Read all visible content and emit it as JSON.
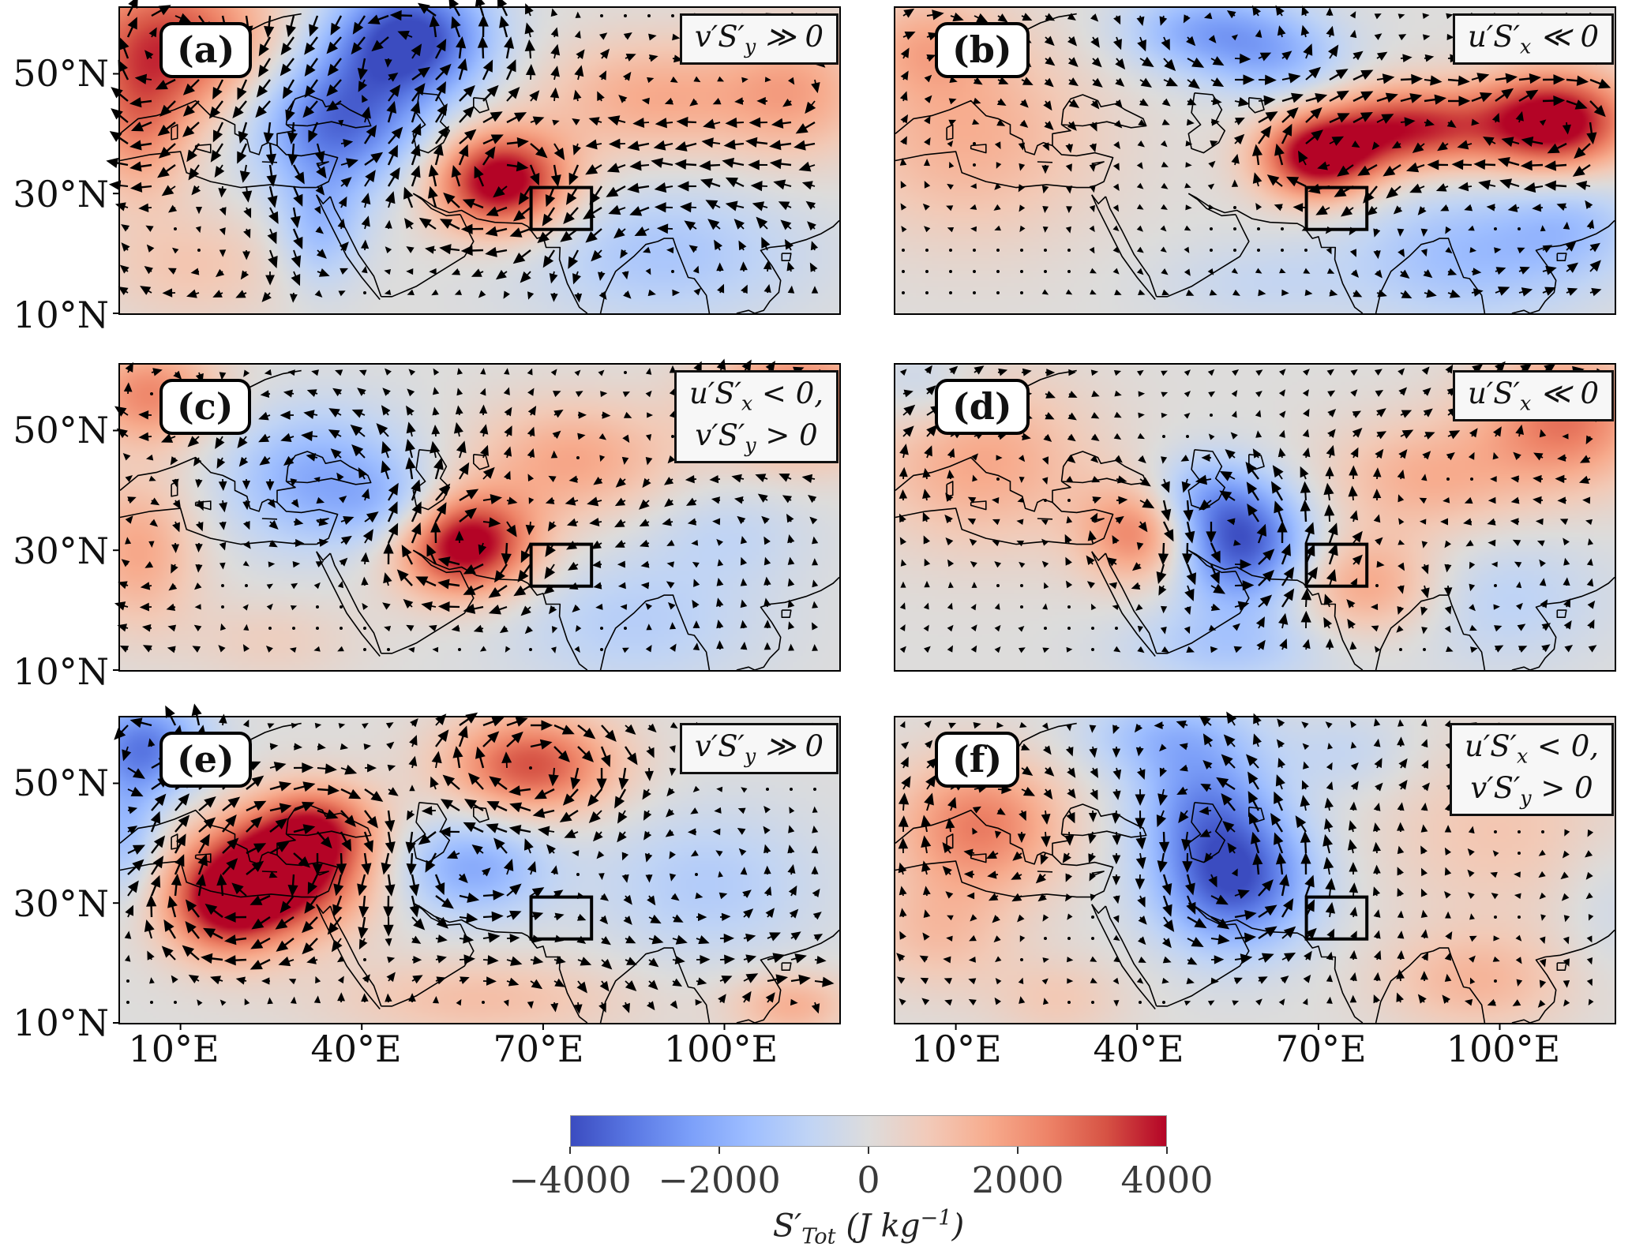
{
  "chart_data": {
    "type": "heatmap",
    "subtype": "6-panel filled geographic anomaly maps with quiver (wind-vector) overlay and highlighted study region box",
    "colormap": "coolwarm",
    "vmin": -4000,
    "vmax": 4000,
    "colorbar_orientation": "horizontal",
    "colorbar_ticks": [
      "−4000",
      "−2000",
      "0",
      "2000",
      "4000"
    ],
    "colorbar_label": "S′_Tot_ (J kg^−1^)",
    "x_ticks": [
      "10°E",
      "40°E",
      "70°E",
      "100°E"
    ],
    "x_tick_lons": [
      10,
      40,
      70,
      100
    ],
    "y_ticks": [
      "50°N",
      "30°N",
      "10°N"
    ],
    "y_tick_lats": [
      50,
      30,
      10
    ],
    "lon_range": [
      0,
      119
    ],
    "lat_range": [
      10,
      61
    ],
    "box_region_lon": [
      68,
      78
    ],
    "box_region_lat": [
      24,
      31
    ],
    "blob_format": "[lon_deg_E, lat_deg_N, sigma_lon_deg, sigma_lat_deg, value_J_per_kg] gaussian anomaly centers estimated from the map shading",
    "panels": [
      {
        "id": "a",
        "label": "(a)",
        "annotation": [
          "v′S′_y_ ≫ 0"
        ],
        "arrow_scale": 1.45,
        "base_flow": [
          -0.08,
          0
        ],
        "blobs": [
          [
            8,
            55,
            12,
            9,
            3400
          ],
          [
            3,
            40,
            6,
            8,
            1800
          ],
          [
            48,
            56,
            9,
            7,
            -4200
          ],
          [
            36,
            42,
            10,
            8,
            -3400
          ],
          [
            33,
            24,
            5,
            7,
            -1600
          ],
          [
            63,
            32,
            8,
            6,
            4600
          ],
          [
            88,
            46,
            13,
            7,
            1600
          ],
          [
            112,
            47,
            9,
            8,
            1600
          ],
          [
            90,
            20,
            16,
            8,
            -1300
          ],
          [
            12,
            18,
            12,
            7,
            900
          ]
        ]
      },
      {
        "id": "b",
        "label": "(b)",
        "annotation": [
          "u′S′_x_ ≪ 0"
        ],
        "arrow_scale": 0.9,
        "base_flow": [
          0.12,
          0
        ],
        "blobs": [
          [
            12,
            40,
            15,
            12,
            1500
          ],
          [
            5,
            55,
            8,
            6,
            1200
          ],
          [
            52,
            57,
            10,
            5,
            -2200
          ],
          [
            64,
            52,
            8,
            5,
            -1400
          ],
          [
            70,
            36,
            7,
            5,
            4300
          ],
          [
            85,
            41,
            10,
            5,
            3600
          ],
          [
            109,
            42,
            9,
            6,
            4600
          ],
          [
            95,
            20,
            14,
            8,
            -1600
          ],
          [
            112,
            25,
            8,
            6,
            -1100
          ],
          [
            60,
            15,
            12,
            5,
            -600
          ]
        ]
      },
      {
        "id": "c",
        "label": "(c)",
        "annotation": [
          "u′S′_x_ < 0,",
          "v′S′_y_ > 0"
        ],
        "arrow_scale": 1.0,
        "base_flow": [
          -0.05,
          0.06
        ],
        "blobs": [
          [
            5,
            56,
            8,
            6,
            2300
          ],
          [
            3,
            30,
            7,
            9,
            1700
          ],
          [
            33,
            42,
            11,
            8,
            -2100
          ],
          [
            46,
            37,
            7,
            5,
            -1100
          ],
          [
            57,
            31,
            8,
            6,
            4600
          ],
          [
            75,
            45,
            12,
            7,
            1700
          ],
          [
            112,
            55,
            10,
            7,
            2700
          ],
          [
            85,
            18,
            15,
            8,
            -1000
          ],
          [
            100,
            33,
            10,
            6,
            -700
          ],
          [
            25,
            15,
            10,
            5,
            600
          ]
        ]
      },
      {
        "id": "d",
        "label": "(d)",
        "annotation": [
          "u′S′_x_ ≪ 0"
        ],
        "arrow_scale": 0.9,
        "base_flow": [
          0.08,
          0.08
        ],
        "blobs": [
          [
            14,
            45,
            13,
            10,
            1700
          ],
          [
            5,
            57,
            7,
            5,
            -900
          ],
          [
            41,
            33,
            7,
            6,
            2700
          ],
          [
            57,
            31,
            8,
            7,
            -3900
          ],
          [
            50,
            39,
            7,
            5,
            -1500
          ],
          [
            78,
            24,
            9,
            6,
            1800
          ],
          [
            88,
            42,
            12,
            7,
            1500
          ],
          [
            111,
            52,
            10,
            8,
            2600
          ],
          [
            55,
            14,
            12,
            5,
            -1200
          ],
          [
            100,
            22,
            12,
            8,
            -900
          ]
        ]
      },
      {
        "id": "e",
        "label": "(e)",
        "annotation": [
          "v′S′_y_ ≫ 0"
        ],
        "arrow_scale": 1.45,
        "base_flow": [
          0.05,
          0
        ],
        "blobs": [
          [
            4,
            56,
            7,
            6,
            -3100
          ],
          [
            1,
            41,
            4,
            7,
            -1600
          ],
          [
            26,
            35,
            10,
            7,
            4800
          ],
          [
            17,
            29,
            7,
            6,
            2800
          ],
          [
            33,
            43,
            7,
            5,
            2400
          ],
          [
            68,
            53,
            10,
            6,
            3200
          ],
          [
            58,
            36,
            9,
            6,
            -2100
          ],
          [
            97,
            33,
            13,
            9,
            -1100
          ],
          [
            60,
            14,
            18,
            5,
            1100
          ],
          [
            111,
            13,
            7,
            4,
            1500
          ]
        ]
      },
      {
        "id": "f",
        "label": "(f)",
        "annotation": [
          "u′S′_x_ < 0,",
          "v′S′_y_ > 0"
        ],
        "arrow_scale": 1.0,
        "base_flow": [
          0,
          0.05
        ],
        "blobs": [
          [
            14,
            43,
            10,
            8,
            2500
          ],
          [
            7,
            25,
            9,
            7,
            1100
          ],
          [
            56,
            34,
            9,
            8,
            -3900
          ],
          [
            51,
            47,
            8,
            7,
            -2100
          ],
          [
            45,
            58,
            10,
            5,
            -1500
          ],
          [
            100,
            42,
            15,
            11,
            900
          ],
          [
            96,
            17,
            11,
            6,
            1300
          ],
          [
            27,
            14,
            8,
            5,
            800
          ],
          [
            118,
            30,
            6,
            8,
            -500
          ],
          [
            75,
            55,
            8,
            5,
            -700
          ]
        ]
      }
    ]
  }
}
